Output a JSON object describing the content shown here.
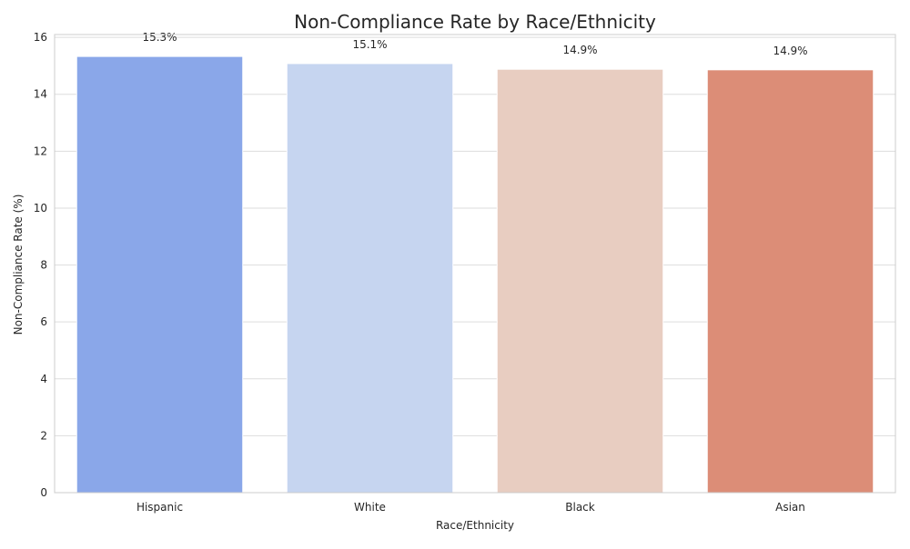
{
  "chart_data": {
    "type": "bar",
    "title": "Non-Compliance Rate by Race/Ethnicity",
    "xlabel": "Race/Ethnicity",
    "ylabel": "Non-Compliance Rate (%)",
    "categories": [
      "Hispanic",
      "White",
      "Black",
      "Asian"
    ],
    "values": [
      15.33,
      15.08,
      14.88,
      14.86
    ],
    "data_labels": [
      "15.3%",
      "15.1%",
      "14.9%",
      "14.9%"
    ],
    "colors": [
      "#8aa7e9",
      "#c6d5f0",
      "#e8cdc1",
      "#dc8d77"
    ],
    "ylim": [
      0,
      16.1
    ],
    "yticks": [
      0,
      2,
      4,
      6,
      8,
      10,
      12,
      14,
      16
    ],
    "grid": true,
    "legend": "none"
  }
}
